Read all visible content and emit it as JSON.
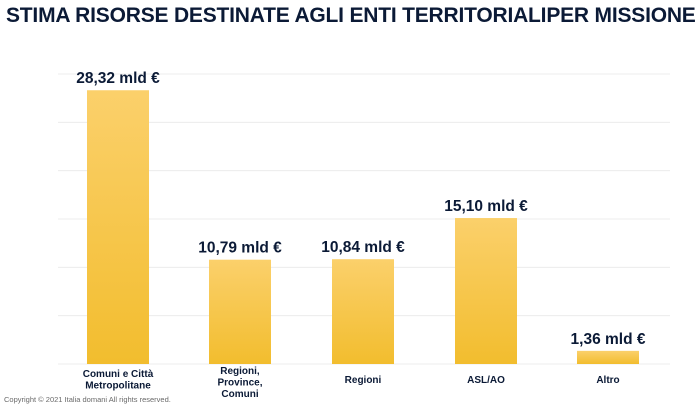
{
  "page": {
    "title": "STIMA RISORSE DESTINATE AGLI ENTI TERRITORIALIPER MISSIONE",
    "footer": "Copyright © 2021 Italia domani  All rights reserved."
  },
  "colors": {
    "bar_top": "#fbd06b",
    "bar_bottom": "#f2bd2e",
    "grid": "#ececec",
    "text": "#0b1a36"
  },
  "chart_data": {
    "type": "bar",
    "categories": [
      [
        "Comuni e Città",
        "Metropolitane"
      ],
      [
        "Regioni,",
        "Province,",
        "Comuni"
      ],
      [
        "Regioni"
      ],
      [
        "ASL/AO"
      ],
      [
        "Altro"
      ]
    ],
    "values": [
      28.32,
      10.79,
      10.84,
      15.1,
      1.36
    ],
    "value_labels": [
      "28,32 mld €",
      "10,79 mld €",
      "10,84 mld €",
      "15,10 mld €",
      "1,36 mld €"
    ],
    "title": "STIMA RISORSE DESTINATE AGLI ENTI TERRITORIALIPER MISSIONE",
    "xlabel": "",
    "ylabel": "",
    "unit": "mld €",
    "ylim": [
      0,
      30
    ],
    "grid": true,
    "legend": "none"
  }
}
